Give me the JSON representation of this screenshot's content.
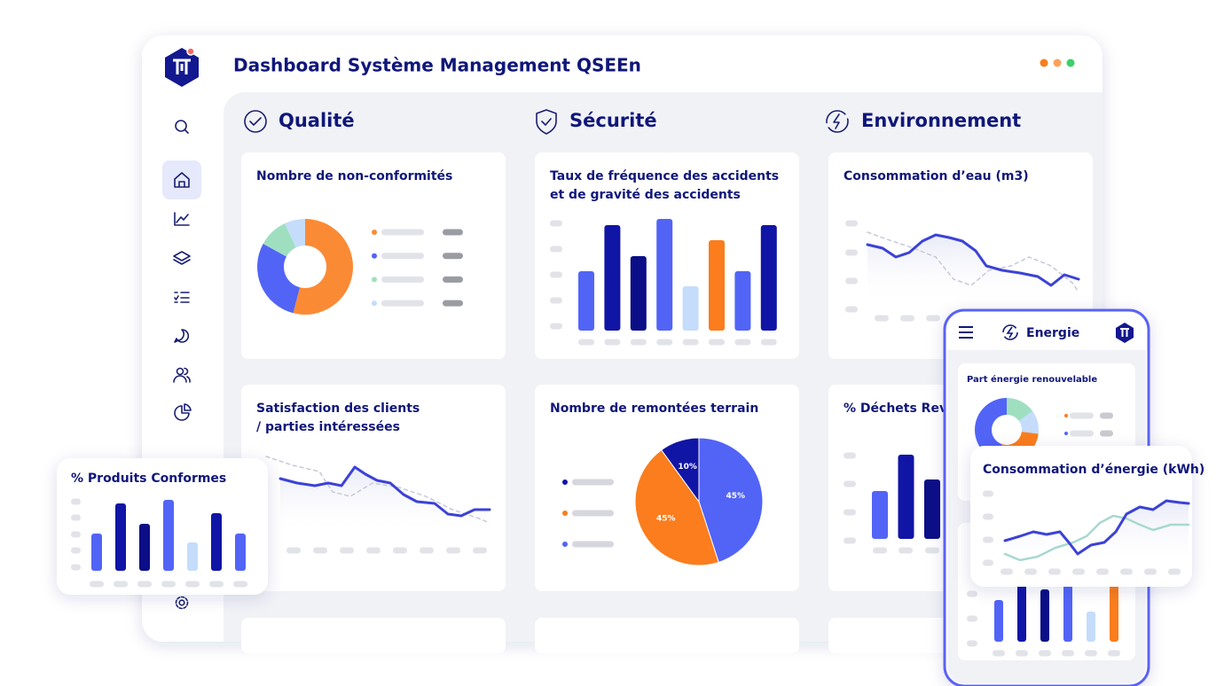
{
  "header": {
    "title": "Dashboard Système Management QSEEn"
  },
  "sections": [
    {
      "title": "Qualité"
    },
    {
      "title": "Sécurité"
    },
    {
      "title": "Environnement"
    }
  ],
  "cards": [
    {
      "title": [
        "Nombre de non-conformités"
      ],
      "chart": {
        "type": "donut",
        "values": [
          54,
          29,
          10,
          7
        ],
        "colors": [
          "#fb8a35",
          "#5264f6",
          "#9fdfc0",
          "#c5dcfb"
        ]
      }
    },
    {
      "title": [
        "Taux de fréquence des accidents",
        "et de gravité des accidents"
      ],
      "chart": {
        "type": "bar",
        "values": [
          67,
          119,
          84,
          126,
          50,
          102,
          67,
          119
        ],
        "colors": [
          "#5264f6",
          "#1115a5",
          "#0b0e86",
          "#5264f6",
          "#c5dcfb",
          "#fb7d1d",
          "#5264f6",
          "#1115a5"
        ]
      }
    },
    {
      "title": [
        "Consommation d’eau (m3)"
      ],
      "chart": {
        "type": "line"
      }
    },
    {
      "title": [
        "Satisfaction des clients",
        "/ parties intéressées"
      ],
      "chart": {
        "type": "line"
      }
    },
    {
      "title": [
        "Nombre de remontées terrain"
      ],
      "chart": {
        "type": "pie",
        "values": [
          45,
          45,
          10
        ],
        "value_labels": [
          "45%",
          "45%",
          "10%"
        ],
        "colors": [
          "#5264f6",
          "#fb7d1d",
          "#1115a5"
        ]
      }
    },
    {
      "title": [
        "% Déchets Revalorisés"
      ],
      "chart": {
        "type": "bar",
        "values": [
          54,
          95,
          67
        ],
        "colors": [
          "#5264f6",
          "#1115a5",
          "#0b0e86"
        ]
      }
    }
  ],
  "floating_card": {
    "title": [
      "% Produits Conformes"
    ],
    "chart": {
      "type": "bar",
      "values": [
        42,
        76,
        53,
        80,
        32,
        65,
        42
      ],
      "colors": [
        "#5264f6",
        "#1115a5",
        "#0b0e86",
        "#5264f6",
        "#c5dcfb",
        "#1115a5",
        "#5264f6"
      ]
    }
  },
  "phone": {
    "title": "Energie",
    "cards": [
      {
        "title": [
          "Part énergie renouvelable"
        ],
        "chart": {
          "type": "donut",
          "values": [
            15,
            12,
            28,
            45
          ],
          "colors": [
            "#9fdfc0",
            "#c5dcfb",
            "#fb7d1d",
            "#5264f6"
          ]
        }
      },
      {
        "title": [],
        "chart": {
          "type": "bar",
          "values": [
            47,
            69,
            59,
            64,
            34,
            64
          ],
          "colors": [
            "#5264f6",
            "#1115a5",
            "#0b0e86",
            "#5264f6",
            "#c5dcfb",
            "#fb7d1d"
          ]
        }
      }
    ]
  },
  "energy_card": {
    "title": [
      "Consommation d’énergie (kWh)"
    ],
    "chart": {
      "type": "line"
    }
  }
}
